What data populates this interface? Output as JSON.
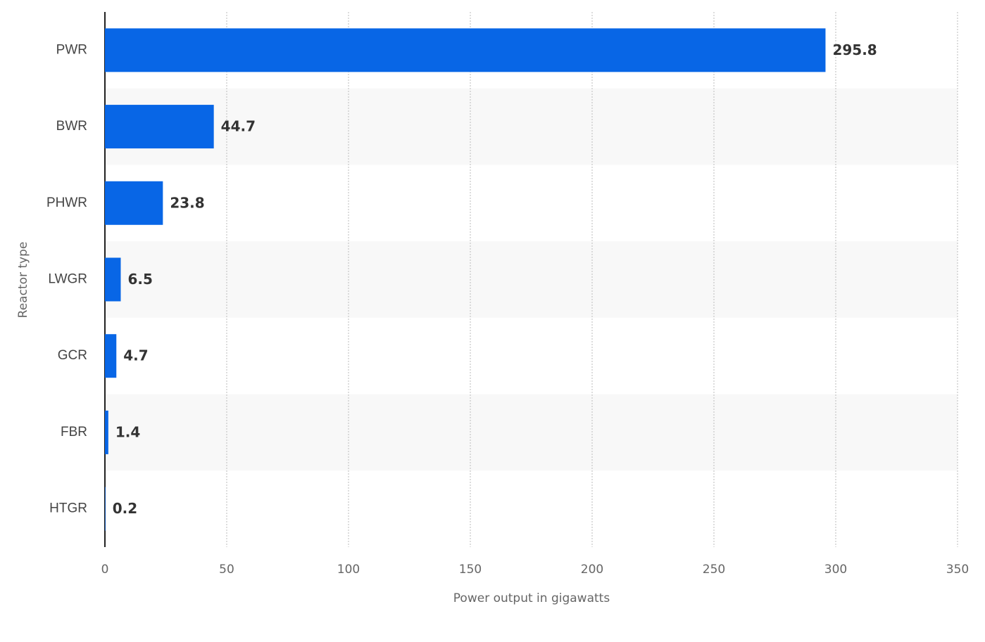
{
  "chart_data": {
    "type": "bar",
    "orientation": "horizontal",
    "categories": [
      "PWR",
      "BWR",
      "PHWR",
      "LWGR",
      "GCR",
      "FBR",
      "HTGR"
    ],
    "values": [
      295.8,
      44.7,
      23.8,
      6.5,
      4.7,
      1.4,
      0.2
    ],
    "color": "#0866e6",
    "x_label": "Power output in gigawatts",
    "y_label": "Reactor type",
    "xlim": [
      0,
      350
    ],
    "xticks": [
      0,
      50,
      100,
      150,
      200,
      250,
      300,
      350
    ],
    "grid": true
  }
}
